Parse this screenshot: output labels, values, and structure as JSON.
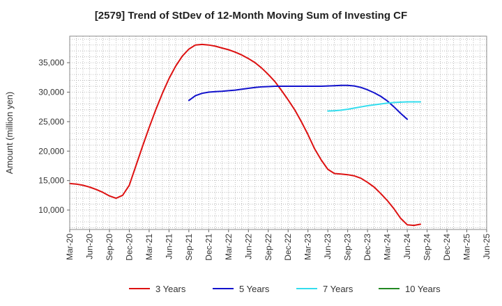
{
  "chart_data": {
    "type": "line",
    "title": "[2579]  Trend of StDev of 12-Month Moving Sum of Investing CF",
    "xlabel": "",
    "ylabel": "Amount (million yen)",
    "ylim": [
      6700,
      39500
    ],
    "yticks": [
      10000,
      15000,
      20000,
      25000,
      30000,
      35000
    ],
    "ytick_labels": [
      "10,000",
      "15,000",
      "20,000",
      "25,000",
      "30,000",
      "35,000"
    ],
    "xtick_labels": [
      "Mar-20",
      "Jun-20",
      "Sep-20",
      "Dec-20",
      "Mar-21",
      "Jun-21",
      "Sep-21",
      "Dec-21",
      "Mar-22",
      "Jun-22",
      "Sep-22",
      "Dec-22",
      "Mar-23",
      "Jun-23",
      "Sep-23",
      "Dec-23",
      "Mar-24",
      "Jun-24",
      "Sep-24",
      "Dec-24",
      "Mar-25",
      "Jun-25"
    ],
    "grid": true,
    "legend_position": "bottom",
    "series": [
      {
        "name": "3 Years",
        "color": "#dd1111",
        "start_index": 0,
        "values": [
          14500,
          14400,
          14200,
          13900,
          13500,
          13000,
          12400,
          12000,
          12500,
          14200,
          17500,
          20800,
          24000,
          27000,
          29800,
          32300,
          34400,
          36100,
          37300,
          38000,
          38100,
          38000,
          37800,
          37500,
          37200,
          36800,
          36300,
          35700,
          35000,
          34100,
          33000,
          31800,
          30300,
          28700,
          27000,
          25000,
          22800,
          20400,
          18500,
          16900,
          16200,
          16100,
          16000,
          15800,
          15400,
          14700,
          13900,
          12800,
          11600,
          10200,
          8600,
          7500,
          7400,
          7600
        ]
      },
      {
        "name": "5 Years",
        "color": "#1111cc",
        "start_index": 18,
        "values": [
          28600,
          29400,
          29800,
          30000,
          30100,
          30150,
          30250,
          30350,
          30500,
          30650,
          30800,
          30900,
          30950,
          31000,
          31000,
          31000,
          31000,
          31000,
          31000,
          31000,
          31000,
          31050,
          31100,
          31150,
          31150,
          31050,
          30800,
          30400,
          29900,
          29300,
          28500,
          27500,
          26400,
          25400
        ]
      },
      {
        "name": "7 Years",
        "color": "#33ddee",
        "start_index": 39,
        "values": [
          26800,
          26850,
          26950,
          27100,
          27300,
          27500,
          27700,
          27850,
          28000,
          28150,
          28250,
          28300,
          28350,
          28350,
          28350
        ]
      },
      {
        "name": "10 Years",
        "color": "#228822",
        "start_index": 0,
        "values": []
      }
    ]
  }
}
